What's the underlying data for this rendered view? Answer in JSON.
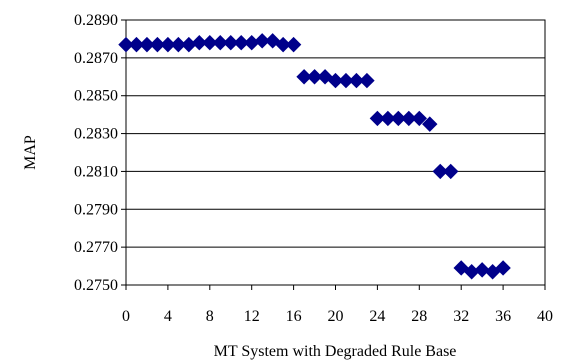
{
  "chart_data": {
    "type": "scatter",
    "title": "",
    "xlabel": "MT System with Degraded Rule Base",
    "ylabel": "MAP",
    "xlim": [
      0,
      40
    ],
    "ylim": [
      0.275,
      0.289
    ],
    "x_ticks": [
      "0",
      "4",
      "8",
      "12",
      "16",
      "20",
      "24",
      "28",
      "32",
      "36",
      "40"
    ],
    "y_ticks": [
      "0.2890",
      "0.2870",
      "0.2850",
      "0.2830",
      "0.2810",
      "0.2790",
      "0.2770",
      "0.2750"
    ],
    "grid": "horizontal",
    "legend": "none",
    "marker": "diamond",
    "marker_color": "#00008b",
    "series": [
      {
        "x": [
          0,
          1,
          2,
          3,
          4,
          5,
          6,
          7,
          8,
          9,
          10,
          11,
          12,
          13,
          14,
          15,
          16,
          17,
          18,
          19,
          20,
          21,
          22,
          23,
          24,
          25,
          26,
          27,
          28,
          29,
          30,
          31,
          32,
          33,
          34,
          35,
          36
        ],
        "y": [
          0.2877,
          0.2877,
          0.2877,
          0.2877,
          0.2877,
          0.2877,
          0.2877,
          0.2878,
          0.2878,
          0.2878,
          0.2878,
          0.2878,
          0.2878,
          0.2879,
          0.2879,
          0.2877,
          0.2877,
          0.286,
          0.286,
          0.286,
          0.2858,
          0.2858,
          0.2858,
          0.2858,
          0.2838,
          0.2838,
          0.2838,
          0.2838,
          0.2838,
          0.2835,
          0.281,
          0.281,
          0.2759,
          0.2757,
          0.2758,
          0.2757,
          0.2759
        ]
      }
    ]
  }
}
